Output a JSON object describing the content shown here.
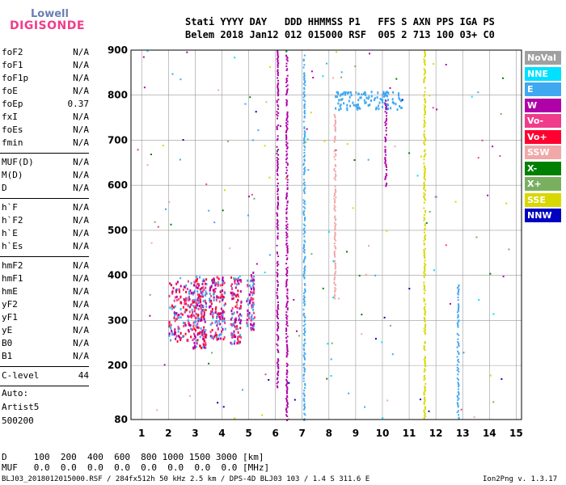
{
  "logo": {
    "top": "Lowell",
    "bottom": "DIGISONDE"
  },
  "header": {
    "line1": "Stati YYYY DAY   DDD HHMMSS P1   FFS S AXN PPS IGA PS",
    "line2": "Belem 2018 Jan12 012 015000 RSF  005 2 713 100 03+ C0"
  },
  "params": [
    {
      "group": [
        {
          "name": "foF2",
          "value": "N/A"
        },
        {
          "name": "foF1",
          "value": "N/A"
        },
        {
          "name": "foF1p",
          "value": "N/A"
        },
        {
          "name": "foE",
          "value": "N/A"
        },
        {
          "name": "foEp",
          "value": "0.37"
        },
        {
          "name": "fxI",
          "value": "N/A"
        },
        {
          "name": "foEs",
          "value": "N/A"
        },
        {
          "name": "fmin",
          "value": "N/A"
        }
      ]
    },
    {
      "group": [
        {
          "name": "MUF(D)",
          "value": "N/A"
        },
        {
          "name": "M(D)",
          "value": "N/A"
        },
        {
          "name": "D",
          "value": "N/A"
        }
      ]
    },
    {
      "group": [
        {
          "name": "h`F",
          "value": "N/A"
        },
        {
          "name": "h`F2",
          "value": "N/A"
        },
        {
          "name": "h`E",
          "value": "N/A"
        },
        {
          "name": "h`Es",
          "value": "N/A"
        }
      ]
    },
    {
      "group": [
        {
          "name": "hmF2",
          "value": "N/A"
        },
        {
          "name": "hmF1",
          "value": "N/A"
        },
        {
          "name": "hmE",
          "value": "N/A"
        },
        {
          "name": "yF2",
          "value": "N/A"
        },
        {
          "name": "yF1",
          "value": "N/A"
        },
        {
          "name": "yE",
          "value": "N/A"
        },
        {
          "name": "B0",
          "value": "N/A"
        },
        {
          "name": "B1",
          "value": "N/A"
        }
      ]
    },
    {
      "group": [
        {
          "name": "C-level",
          "value": "44"
        }
      ]
    }
  ],
  "auto": [
    "Auto:",
    "Artist5",
    "500200"
  ],
  "legend": [
    {
      "label": "NoVal",
      "color": "#a0a0a0"
    },
    {
      "label": "NNE",
      "color": "#00e0ff"
    },
    {
      "label": "E",
      "color": "#3fa8f0"
    },
    {
      "label": "W",
      "color": "#b000a8"
    },
    {
      "label": "Vo-",
      "color": "#f03c8a"
    },
    {
      "label": "Vo+",
      "color": "#ff0030"
    },
    {
      "label": "SSW",
      "color": "#f0a8a8"
    },
    {
      "label": "X-",
      "color": "#008000"
    },
    {
      "label": "X+",
      "color": "#78b060"
    },
    {
      "label": "SSE",
      "color": "#d8d800"
    },
    {
      "label": "NNW",
      "color": "#0000c0"
    }
  ],
  "bottom": {
    "line1": "D     100  200  400  600  800 1000 1500 3000 [km]",
    "line2": "MUF   0.0  0.0  0.0  0.0  0.0  0.0  0.0  0.0 [MHz]"
  },
  "footer": {
    "left": "BLJ03_2018012015000.RSF / 284fx512h 50 kHz 2.5 km / DPS-4D BLJ03 103 / 1.4 S 311.6 E",
    "right": "Ion2Png v. 1.3.17"
  },
  "chart_data": {
    "type": "scatter",
    "xlim": [
      0.6,
      15.2
    ],
    "ylim": [
      80,
      900
    ],
    "xticks": [
      1,
      2,
      3,
      4,
      5,
      6,
      7,
      8,
      9,
      10,
      11,
      12,
      13,
      14,
      15
    ],
    "yticks": [
      80,
      200,
      300,
      400,
      500,
      600,
      700,
      800,
      900
    ],
    "grid": true,
    "xlabel": "",
    "ylabel": "",
    "traces": [
      {
        "kind": "cluster",
        "x": [
          2.0,
          2.9
        ],
        "y": [
          255,
          390
        ],
        "colors": [
          "#b000a8",
          "#f03c8a",
          "#ff0030",
          "#3fa8f0"
        ],
        "count": 160
      },
      {
        "kind": "cluster",
        "x": [
          2.9,
          3.4
        ],
        "y": [
          240,
          400
        ],
        "colors": [
          "#b000a8",
          "#f03c8a",
          "#ff0030",
          "#3fa8f0"
        ],
        "count": 180
      },
      {
        "kind": "cluster",
        "x": [
          3.5,
          4.1
        ],
        "y": [
          260,
          400
        ],
        "colors": [
          "#b000a8",
          "#f03c8a",
          "#ff0030",
          "#3fa8f0"
        ],
        "count": 150
      },
      {
        "kind": "cluster",
        "x": [
          4.3,
          4.7
        ],
        "y": [
          250,
          400
        ],
        "colors": [
          "#b000a8",
          "#f03c8a",
          "#ff0030",
          "#3fa8f0"
        ],
        "count": 110
      },
      {
        "kind": "cluster",
        "x": [
          4.9,
          5.2
        ],
        "y": [
          280,
          410
        ],
        "colors": [
          "#b000a8",
          "#f03c8a",
          "#3fa8f0"
        ],
        "count": 80
      },
      {
        "kind": "cluster",
        "x": [
          8.2,
          10.7
        ],
        "y": [
          770,
          810
        ],
        "colors": [
          "#3fa8f0"
        ],
        "count": 120
      },
      {
        "kind": "vline",
        "x": 6.05,
        "y": [
          150,
          900
        ],
        "color": "#b000a8"
      },
      {
        "kind": "vline",
        "x": 6.4,
        "y": [
          80,
          890
        ],
        "color": "#b000a8"
      },
      {
        "kind": "vline",
        "x": 7.05,
        "y": [
          80,
          890
        ],
        "color": "#3fa8f0"
      },
      {
        "kind": "vline",
        "x": 8.2,
        "y": [
          350,
          760
        ],
        "color": "#f0a8a8"
      },
      {
        "kind": "vline",
        "x": 10.1,
        "y": [
          600,
          790
        ],
        "color": "#b000a8"
      },
      {
        "kind": "vline",
        "x": 11.55,
        "y": [
          80,
          900
        ],
        "color": "#d8d800"
      },
      {
        "kind": "vline",
        "x": 12.8,
        "y": [
          80,
          380
        ],
        "color": "#3fa8f0"
      },
      {
        "kind": "sparse",
        "x": [
          0.7,
          15.0
        ],
        "y": [
          80,
          900
        ],
        "colors": [
          "#b000a8",
          "#3fa8f0",
          "#00e0ff",
          "#f03c8a",
          "#0000c0",
          "#008000",
          "#78b060",
          "#d8d800",
          "#f0a8a8"
        ],
        "count": 170
      }
    ]
  }
}
